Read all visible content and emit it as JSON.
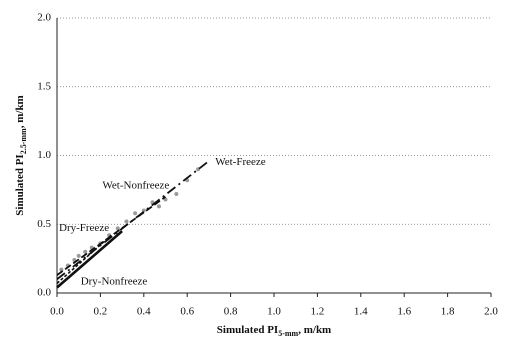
{
  "chart_data": {
    "type": "line",
    "xlabel": [
      "Simulated PI",
      "5-mm",
      ", m/km"
    ],
    "ylabel": [
      "Simulated PI",
      "2.5-mm",
      ", m/km"
    ],
    "xlim": [
      0,
      2
    ],
    "ylim": [
      0,
      2
    ],
    "xticks": [
      {
        "value": 0,
        "label": "0.0"
      },
      {
        "value": 0.2,
        "label": "0.2"
      },
      {
        "value": 0.4,
        "label": "0.4"
      },
      {
        "value": 0.6,
        "label": "0.6"
      },
      {
        "value": 0.8,
        "label": "0.8"
      },
      {
        "value": 1,
        "label": "1.0"
      },
      {
        "value": 1.2,
        "label": "1.2"
      },
      {
        "value": 1.4,
        "label": "1.4"
      },
      {
        "value": 1.6,
        "label": "1.6"
      },
      {
        "value": 1.8,
        "label": "1.8"
      },
      {
        "value": 2,
        "label": "2.0"
      }
    ],
    "yticks": [
      {
        "value": 0,
        "label": "0.0"
      },
      {
        "value": 0.5,
        "label": "0.5"
      },
      {
        "value": 1,
        "label": "1.0"
      },
      {
        "value": 1.5,
        "label": "1.5"
      },
      {
        "value": 2,
        "label": "2.0"
      }
    ],
    "grid": true,
    "series": [
      {
        "name": "Wet-Freeze",
        "color": "#111111",
        "style": "dashdot",
        "x": [
          0,
          0.7
        ],
        "values": [
          0.1,
          0.96
        ]
      },
      {
        "name": "Wet-Nonfreeze",
        "color": "#111111",
        "style": "dashed",
        "x": [
          0,
          0.5
        ],
        "values": [
          0.13,
          0.7
        ]
      },
      {
        "name": "Dry-Freeze",
        "color": "#111111",
        "style": "dotted",
        "x": [
          0,
          0.25
        ],
        "values": [
          0.07,
          0.42
        ]
      },
      {
        "name": "Dry-Nonfreeze",
        "color": "#111111",
        "style": "solid",
        "x": [
          0,
          0.3
        ],
        "values": [
          0.04,
          0.45
        ]
      }
    ],
    "points": {
      "color": "#9a9a9a",
      "x": [
        0.02,
        0.05,
        0.08,
        0.1,
        0.13,
        0.16,
        0.2,
        0.24,
        0.28,
        0.32,
        0.36,
        0.4,
        0.44,
        0.47,
        0.5,
        0.55,
        0.6,
        0.65
      ],
      "values": [
        0.17,
        0.2,
        0.24,
        0.27,
        0.3,
        0.33,
        0.36,
        0.42,
        0.47,
        0.52,
        0.58,
        0.6,
        0.66,
        0.63,
        0.68,
        0.72,
        0.82,
        0.9
      ]
    }
  }
}
